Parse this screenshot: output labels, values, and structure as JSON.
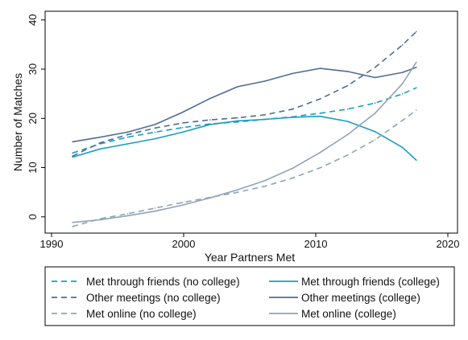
{
  "chart_data": {
    "type": "line",
    "xlabel": "Year Partners Met",
    "ylabel": "Number of Matches",
    "xlim": [
      1990,
      2020
    ],
    "ylim": [
      -2.5,
      41
    ],
    "xticks": [
      "1990",
      "2000",
      "2010",
      "2020"
    ],
    "yticks": [
      "0",
      "10",
      "20",
      "30",
      "40"
    ],
    "grid": false,
    "legend_position": "bottom",
    "series": [
      {
        "name": "Met through friends (no college)",
        "color": "#1a9cc4",
        "dash": "dashed",
        "x": [
          1992,
          1994,
          1996,
          1998,
          2000,
          2002,
          2004,
          2006,
          2008,
          2010,
          2012,
          2014,
          2016,
          2017
        ],
        "y": [
          13.2,
          15,
          16.3,
          17.3,
          18.2,
          18.9,
          19.3,
          19.8,
          20.3,
          21.0,
          21.8,
          23.0,
          24.8,
          26.0
        ]
      },
      {
        "name": "Met through friends (college)",
        "color": "#1a9cc4",
        "dash": "solid",
        "x": [
          1992,
          1994,
          1996,
          1998,
          2000,
          2002,
          2004,
          2006,
          2008,
          2010,
          2012,
          2014,
          2016,
          2017
        ],
        "y": [
          12.4,
          14,
          15,
          16,
          17.3,
          18.8,
          19.5,
          19.8,
          20.2,
          20.4,
          19.4,
          17.4,
          14.3,
          11.8
        ]
      },
      {
        "name": "Other meetings (no college)",
        "color": "#4d6e94",
        "dash": "dashed",
        "x": [
          1992,
          1994,
          1996,
          1998,
          2000,
          2002,
          2004,
          2006,
          2008,
          2010,
          2012,
          2014,
          2016,
          2017
        ],
        "y": [
          12.6,
          15.2,
          16.8,
          18.1,
          19.1,
          19.7,
          20.1,
          20.7,
          21.8,
          23.8,
          26.4,
          30.0,
          34.4,
          37.0
        ]
      },
      {
        "name": "Other meetings (college)",
        "color": "#4d6e94",
        "dash": "solid",
        "x": [
          1992,
          1994,
          1996,
          1998,
          2000,
          2002,
          2004,
          2006,
          2008,
          2010,
          2012,
          2014,
          2016,
          2017
        ],
        "y": [
          15.4,
          16.3,
          17.3,
          18.8,
          21.2,
          23.9,
          26.2,
          27.3,
          28.8,
          29.8,
          29.2,
          28.0,
          29.0,
          30.0
        ]
      },
      {
        "name": "Met online (no college)",
        "color": "#8fa3b8",
        "dash": "dashed",
        "x": [
          1992,
          1994,
          1996,
          1998,
          2000,
          2002,
          2004,
          2006,
          2008,
          2010,
          2012,
          2014,
          2016,
          2017
        ],
        "y": [
          -1.2,
          0.3,
          1.3,
          2.4,
          3.5,
          4.5,
          5.5,
          6.7,
          8.3,
          10.3,
          12.8,
          15.8,
          19.6,
          21.6
        ]
      },
      {
        "name": "Met online (college)",
        "color": "#8fa3b8",
        "dash": "solid",
        "x": [
          1992,
          1994,
          1996,
          1998,
          2000,
          2002,
          2004,
          2006,
          2008,
          2010,
          2012,
          2014,
          2016,
          2017
        ],
        "y": [
          -0.4,
          0.1,
          0.9,
          1.8,
          3.0,
          4.4,
          6.0,
          7.8,
          10.2,
          13.3,
          16.8,
          21.0,
          26.8,
          31.0
        ]
      }
    ],
    "legend": [
      "Met through friends (no college)",
      "Met through friends (college)",
      "Other meetings (no college)",
      "Other meetings (college)",
      "Met online (no college)",
      "Met online (college)"
    ]
  }
}
